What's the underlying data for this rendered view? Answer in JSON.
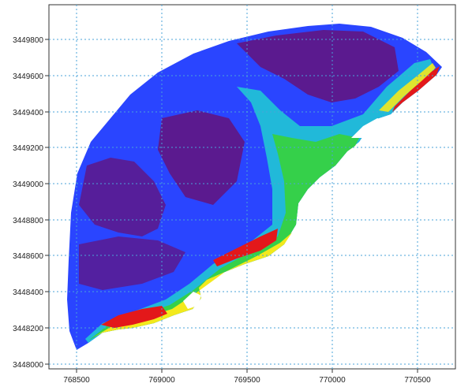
{
  "map": {
    "x_axis": {
      "ticks": [
        "768500",
        "769000",
        "769500",
        "770000",
        "770500"
      ]
    },
    "y_axis": {
      "ticks": [
        "3449800",
        "3449600",
        "3449400",
        "3449200",
        "3449000",
        "3448800",
        "3448600",
        "3448400",
        "3448200",
        "3448000"
      ]
    },
    "grid": true,
    "colors": {
      "deep": "#5b1a8f",
      "blue": "#1f3cff",
      "cyan": "#21b9d9",
      "green": "#35d04a",
      "yellow": "#f3e91c",
      "red": "#e3181a"
    }
  }
}
